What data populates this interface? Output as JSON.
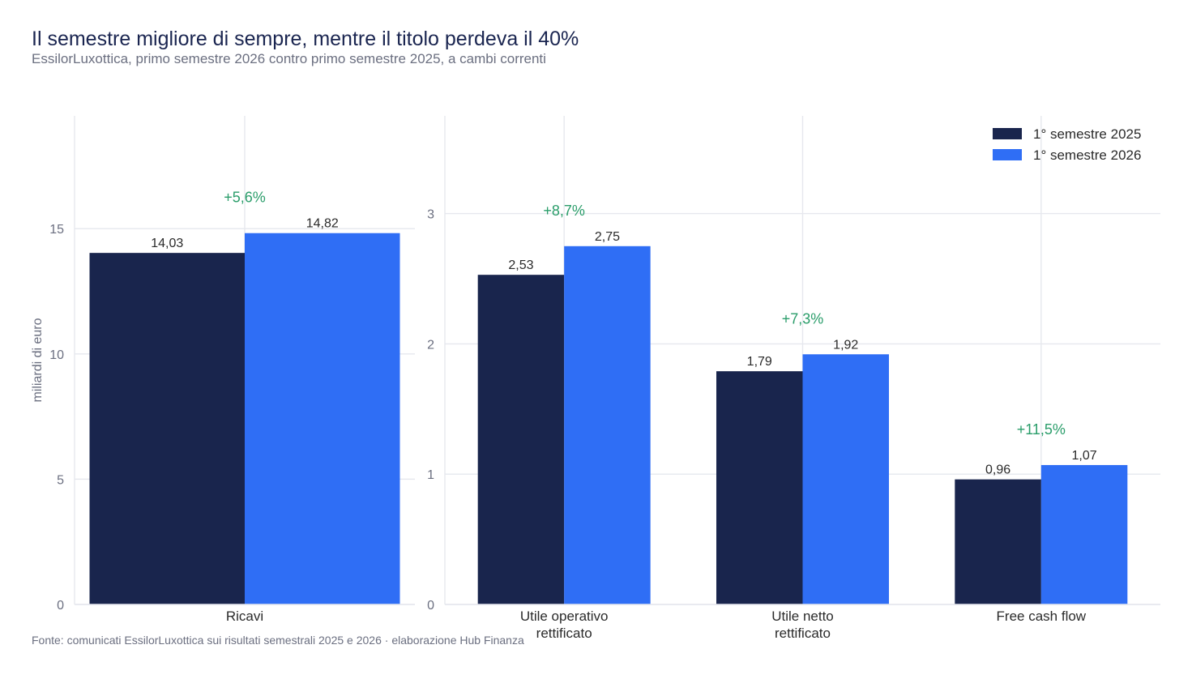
{
  "header": {
    "title": "Il semestre migliore di sempre, mentre il titolo perdeva il 40%",
    "subtitle": "EssilorLuxottica, primo semestre 2026 contro primo semestre 2025, a cambi correnti"
  },
  "footer": {
    "source": "Fonte: comunicati EssilorLuxottica sui risultati semestrali 2025 e 2026 · elaborazione Hub Finanza"
  },
  "colors": {
    "series_2025": "#19254d",
    "series_2026": "#2f6ef5",
    "change_label": "#2a9d6a",
    "grid": "#e6e8ee",
    "tick": "#6b6f80",
    "value_label": "#2a2a2a"
  },
  "chart_data": [
    {
      "type": "bar",
      "categories": [
        "Ricavi"
      ],
      "series": [
        {
          "name": "1° semestre 2025",
          "values": [
            14.03
          ],
          "labels": [
            "14,03"
          ]
        },
        {
          "name": "1° semestre 2026",
          "values": [
            14.82
          ],
          "labels": [
            "14,82"
          ]
        }
      ],
      "changes": [
        "+5,6%"
      ],
      "ylabel": "miliardi di euro",
      "ylim": [
        0,
        19.5
      ],
      "yticks": [
        0,
        5,
        10,
        15
      ],
      "ytick_labels": [
        "0",
        "5",
        "10",
        "15"
      ],
      "grid": true
    },
    {
      "type": "bar",
      "categories": [
        "Utile operativo\nrettificato",
        "Utile netto\nrettificato",
        "Free cash flow"
      ],
      "series": [
        {
          "name": "1° semestre 2025",
          "values": [
            2.53,
            1.79,
            0.96
          ],
          "labels": [
            "2,53",
            "1,79",
            "0,96"
          ]
        },
        {
          "name": "1° semestre 2026",
          "values": [
            2.75,
            1.92,
            1.07
          ],
          "labels": [
            "2,75",
            "1,92",
            "1,07"
          ]
        }
      ],
      "changes": [
        "+8,7%",
        "+7,3%",
        "+11,5%"
      ],
      "ylim": [
        0,
        3.75
      ],
      "yticks": [
        0,
        1,
        2,
        3
      ],
      "ytick_labels": [
        "0",
        "1",
        "2",
        "3"
      ],
      "grid": true,
      "legend": "top-right"
    }
  ]
}
